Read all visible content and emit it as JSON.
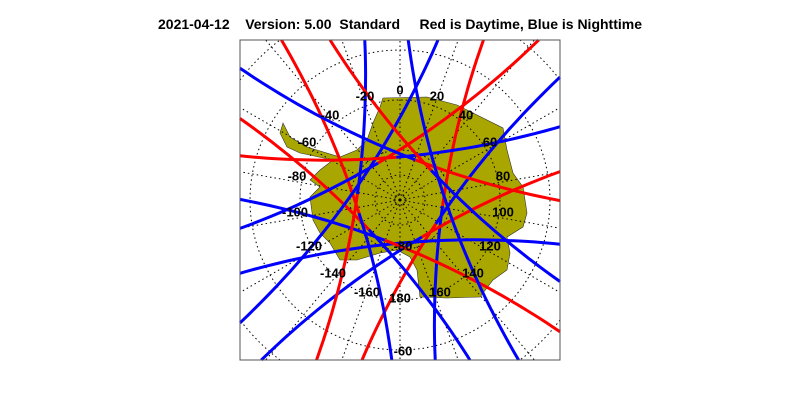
{
  "header": {
    "date": "2021-04-12",
    "version": "Version: 5.00",
    "mode": "Standard",
    "legend": "Red is Daytime, Blue is Nighttime"
  },
  "map": {
    "projection": "south polar stereographic",
    "land_color": "#aaa600",
    "day_color": "#ff0000",
    "night_color": "#0000ff",
    "longitude_labels": [
      "0",
      "20",
      "40",
      "60",
      "80",
      "100",
      "120",
      "140",
      "160",
      "180",
      "-160",
      "-140",
      "-120",
      "-100",
      "-80",
      "-60",
      "-40",
      "-20"
    ],
    "latitude_labels": [
      "-80",
      "-60"
    ]
  }
}
